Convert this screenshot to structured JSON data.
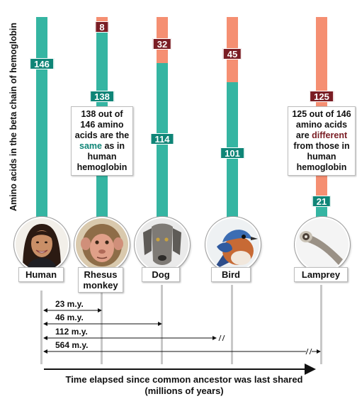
{
  "y_axis_label": "Amino acids in the beta chain of hemoglobin",
  "x_axis_label_line1": "Time elapsed since common ancestor was last shared",
  "x_axis_label_line2": "(millions of years)",
  "colors": {
    "same": "#35b5a2",
    "different": "#f58f72",
    "same_tag": "#0f8577",
    "different_tag": "#7a1d24"
  },
  "total_amino_acids": 146,
  "organisms": [
    {
      "name": "Human",
      "same": 146,
      "different": 0,
      "same_label": "146",
      "different_label": "",
      "icon": "human-face-icon"
    },
    {
      "name": "Rhesus monkey",
      "name_line1": "Rhesus",
      "name_line2": "monkey",
      "same": 138,
      "different": 8,
      "same_label": "138",
      "different_label": "8",
      "icon": "monkey-face-icon"
    },
    {
      "name": "Dog",
      "same": 114,
      "different": 32,
      "same_label": "114",
      "different_label": "32",
      "icon": "dog-face-icon"
    },
    {
      "name": "Bird",
      "same": 101,
      "different": 45,
      "same_label": "101",
      "different_label": "45",
      "icon": "bird-icon"
    },
    {
      "name": "Lamprey",
      "same": 21,
      "different": 125,
      "same_label": "21",
      "different_label": "125",
      "icon": "lamprey-icon"
    }
  ],
  "callouts": {
    "monkey": {
      "line1": "138 out of",
      "line2": "146 amino",
      "line3a": "acids are the",
      "highlight": "same",
      "line4b": " as in",
      "line5": "human",
      "line6": "hemoglobin"
    },
    "lamprey": {
      "line1": "125 out of 146",
      "line2": "amino acids",
      "line3a": "are ",
      "highlight": "different",
      "line4": "from those in",
      "line5": "human",
      "line6": "hemoglobin"
    }
  },
  "time_spans": [
    {
      "label": "23 m.y.",
      "to": "Rhesus monkey",
      "value": 23,
      "broken": false
    },
    {
      "label": "46 m.y.",
      "to": "Dog",
      "value": 46,
      "broken": false
    },
    {
      "label": "112 m.y.",
      "to": "Bird",
      "value": 112,
      "broken": true
    },
    {
      "label": "564 m.y.",
      "to": "Lamprey",
      "value": 564,
      "broken": true
    }
  ]
}
